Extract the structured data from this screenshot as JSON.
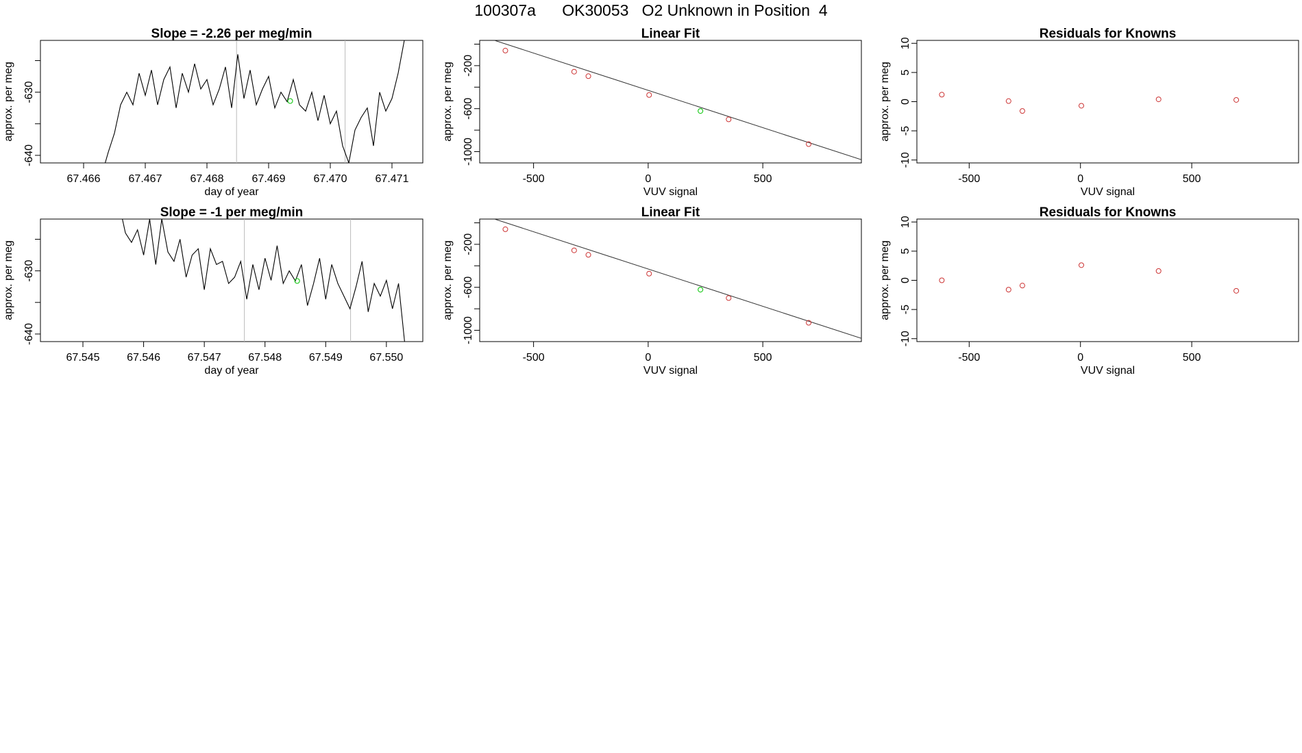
{
  "page_title": "100307a      OK30053   O2 Unknown in Position  4",
  "chart_data": [
    {
      "type": "line",
      "title": "Slope =  -2.26  per meg/min",
      "xlabel": "day of year",
      "ylabel": "approx. per meg",
      "xlim": [
        67.4653,
        67.4715
      ],
      "ylim": [
        -641.2,
        -621.8
      ],
      "x_ticks": [
        "67.466",
        "67.467",
        "67.468",
        "67.469",
        "67.470",
        "67.471"
      ],
      "y_ticks": [
        "-640",
        "-630"
      ],
      "y_minor_ticks": [
        -635,
        -625
      ],
      "vlines": [
        67.46848,
        67.47024
      ],
      "highlight_point": {
        "x": 67.46935,
        "y": -631.4,
        "color": "#22cc22"
      },
      "line_color": "#000000",
      "series": [
        {
          "x": [
            67.46635,
            67.4664,
            67.46645,
            67.4665,
            67.4666,
            67.4667,
            67.4668,
            67.4669,
            67.467,
            67.4671,
            67.4672,
            67.4673,
            67.4674,
            67.4675,
            67.4676,
            67.4677,
            67.4678,
            67.4679,
            67.468,
            67.4681,
            67.4682,
            67.4683,
            67.4684,
            67.4685,
            67.4686,
            67.4687,
            67.4688,
            67.4689,
            67.469,
            67.4691,
            67.4692,
            67.4693,
            67.4694,
            67.4695,
            67.4696,
            67.4697,
            67.4698,
            67.4699,
            67.47,
            67.4701,
            67.4702,
            67.4703,
            67.4704,
            67.4705,
            67.4706,
            67.4707,
            67.4708,
            67.4709,
            67.471,
            67.4711,
            67.4712
          ],
          "y": [
            -641.2,
            -639.5,
            -638.0,
            -636.5,
            -632.0,
            -630.0,
            -632.0,
            -627.0,
            -630.5,
            -626.5,
            -632.0,
            -628.0,
            -626.0,
            -632.5,
            -627.0,
            -630.0,
            -625.5,
            -629.5,
            -628.0,
            -632.0,
            -629.5,
            -626.0,
            -632.5,
            -624.0,
            -631.0,
            -626.5,
            -632.0,
            -629.5,
            -627.5,
            -632.5,
            -630.0,
            -631.5,
            -628.0,
            -632.0,
            -633.0,
            -630.0,
            -634.5,
            -630.5,
            -635.0,
            -633.0,
            -638.5,
            -641.2,
            -636.0,
            -634.0,
            -632.5,
            -638.5,
            -630.0,
            -633.0,
            -631.0,
            -627.0,
            -621.8
          ]
        }
      ]
    },
    {
      "type": "scatter",
      "title": "Linear Fit",
      "xlabel": "VUV signal",
      "ylabel": "approx. per meg",
      "xlim": [
        -735,
        930
      ],
      "ylim": [
        -1105,
        35
      ],
      "x_ticks": [
        "-500",
        "0",
        "500"
      ],
      "y_ticks": [
        "-1000",
        "-600",
        "-200"
      ],
      "y_minor_ticks": [
        -800,
        -400,
        0
      ],
      "fit_line": {
        "x": [
          -670,
          930
        ],
        "y": [
          35,
          -1075
        ]
      },
      "points": {
        "x": [
          -623,
          -323,
          -261,
          4,
          351,
          700
        ],
        "y": [
          -60,
          -256,
          -298,
          -473,
          -700,
          -930
        ],
        "color": "#cc3333"
      },
      "highlight_point": {
        "x": 228,
        "y": -622,
        "color": "#22cc22"
      }
    },
    {
      "type": "scatter",
      "title": "Residuals for Knowns",
      "xlabel": "VUV signal",
      "ylabel": "approx. per meg",
      "xlim": [
        -735,
        980
      ],
      "ylim": [
        -10.5,
        10.5
      ],
      "x_ticks": [
        "-500",
        "0",
        "500"
      ],
      "y_ticks": [
        "-10",
        "-5",
        "0",
        "5",
        "10"
      ],
      "points": {
        "x": [
          -623,
          -323,
          -261,
          4,
          351,
          700
        ],
        "y": [
          1.2,
          0.1,
          -1.6,
          -0.7,
          0.4,
          0.3
        ],
        "color": "#cc3333"
      }
    },
    {
      "type": "line",
      "title": "Slope =  -1  per meg/min",
      "xlabel": "day of year",
      "ylabel": "approx. per meg",
      "xlim": [
        67.5443,
        67.5506
      ],
      "ylim": [
        -641.2,
        -621.8
      ],
      "x_ticks": [
        "67.545",
        "67.546",
        "67.547",
        "67.548",
        "67.549",
        "67.550"
      ],
      "y_ticks": [
        "-640",
        "-630"
      ],
      "y_minor_ticks": [
        -635,
        -625
      ],
      "vlines": [
        67.54766,
        67.54941
      ],
      "highlight_point": {
        "x": 67.54853,
        "y": -631.6,
        "color": "#22cc22"
      },
      "line_color": "#000000",
      "series": [
        {
          "x": [
            67.54565,
            67.5457,
            67.5458,
            67.5459,
            67.546,
            67.5461,
            67.5462,
            67.5463,
            67.5464,
            67.5465,
            67.5466,
            67.5467,
            67.5468,
            67.5469,
            67.547,
            67.5471,
            67.5472,
            67.5473,
            67.5474,
            67.5475,
            67.5476,
            67.5477,
            67.5478,
            67.5479,
            67.548,
            67.5481,
            67.5482,
            67.5483,
            67.5484,
            67.5485,
            67.5486,
            67.5487,
            67.5488,
            67.5489,
            67.549,
            67.5491,
            67.5492,
            67.5493,
            67.5494,
            67.5495,
            67.5496,
            67.5497,
            67.5498,
            67.5499,
            67.55,
            67.5501,
            67.5502,
            67.5503
          ],
          "y": [
            -621.8,
            -624.0,
            -625.5,
            -623.5,
            -627.5,
            -621.8,
            -629.0,
            -621.8,
            -627.0,
            -628.5,
            -625.0,
            -631.0,
            -627.5,
            -626.5,
            -633.0,
            -626.5,
            -629.0,
            -628.5,
            -632.0,
            -631.0,
            -628.5,
            -634.5,
            -629.0,
            -633.0,
            -628.0,
            -631.5,
            -626.0,
            -632.0,
            -630.0,
            -631.6,
            -629.0,
            -635.5,
            -632.0,
            -628.0,
            -634.5,
            -629.0,
            -632.0,
            -634.0,
            -636.0,
            -632.5,
            -628.5,
            -636.5,
            -632.0,
            -634.0,
            -631.5,
            -636.0,
            -632.0,
            -641.2
          ]
        }
      ]
    },
    {
      "type": "scatter",
      "title": "Linear Fit",
      "xlabel": "VUV signal",
      "ylabel": "approx. per meg",
      "xlim": [
        -735,
        930
      ],
      "ylim": [
        -1105,
        35
      ],
      "x_ticks": [
        "-500",
        "0",
        "500"
      ],
      "y_ticks": [
        "-1000",
        "-600",
        "-200"
      ],
      "y_minor_ticks": [
        -800,
        -400,
        0
      ],
      "fit_line": {
        "x": [
          -670,
          930
        ],
        "y": [
          35,
          -1075
        ]
      },
      "points": {
        "x": [
          -623,
          -323,
          -261,
          4,
          351,
          700
        ],
        "y": [
          -60,
          -256,
          -298,
          -473,
          -700,
          -930
        ],
        "color": "#cc3333"
      },
      "highlight_point": {
        "x": 228,
        "y": -622,
        "color": "#22cc22"
      }
    },
    {
      "type": "scatter",
      "title": "Residuals for Knowns",
      "xlabel": "VUV signal",
      "ylabel": "approx. per meg",
      "xlim": [
        -735,
        980
      ],
      "ylim": [
        -10.5,
        10.5
      ],
      "x_ticks": [
        "-500",
        "0",
        "500"
      ],
      "y_ticks": [
        "-10",
        "-5",
        "0",
        "5",
        "10"
      ],
      "points": {
        "x": [
          -623,
          -323,
          -261,
          4,
          351,
          700
        ],
        "y": [
          0.0,
          -1.6,
          -0.9,
          2.6,
          1.6,
          -1.8
        ],
        "color": "#cc3333"
      }
    }
  ]
}
